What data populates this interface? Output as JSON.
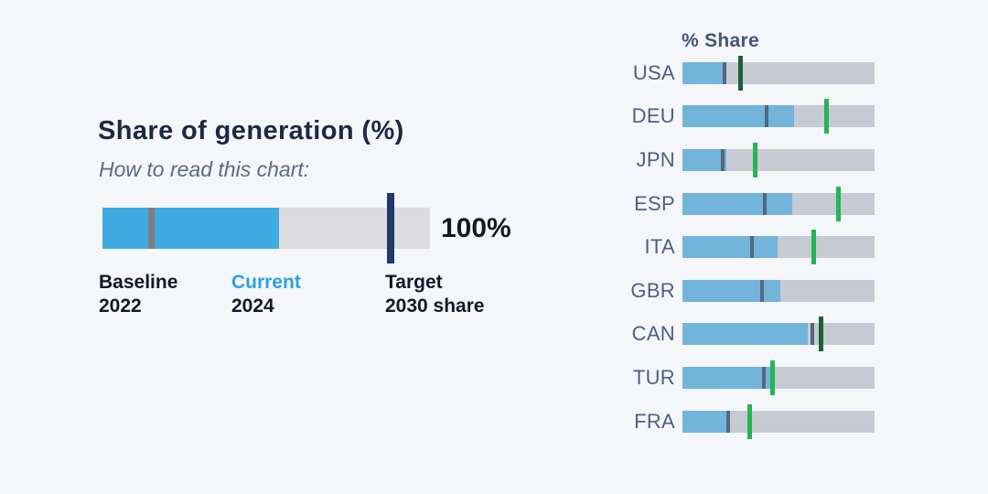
{
  "legend_panel": {
    "title": "Share of generation (%)",
    "subtitle": "How to read this chart:",
    "full_label": "100%",
    "items": [
      {
        "label": "Baseline",
        "sub": "2022"
      },
      {
        "label": "Current",
        "sub": "2024"
      },
      {
        "label": "Target",
        "sub": "2030 share"
      }
    ],
    "demo": {
      "baseline_pct": 15,
      "current_pct": 54,
      "target_pct": 88
    }
  },
  "chart_data": {
    "type": "bar",
    "title": "Share of generation (%)",
    "axis_header": "% Share",
    "orientation": "horizontal",
    "xlim": [
      0,
      100
    ],
    "categories": [
      "USA",
      "DEU",
      "JPN",
      "ESP",
      "ITA",
      "GBR",
      "CAN",
      "TUR",
      "FRA"
    ],
    "series": [
      {
        "name": "Baseline 2022",
        "values": [
          22,
          44,
          21,
          43,
          36,
          41.5,
          67.5,
          42.5,
          24
        ]
      },
      {
        "name": "Current 2024",
        "values": [
          22.5,
          58,
          23,
          57,
          49.5,
          51,
          65,
          46,
          24.5
        ]
      },
      {
        "name": "Target 2030 share",
        "values": [
          30,
          75,
          38,
          81,
          68.5,
          null,
          72,
          47,
          35
        ]
      }
    ],
    "target_tick_shade": [
      "dark",
      "bright",
      "bright",
      "bright",
      "bright",
      null,
      "dark",
      "bright",
      "bright"
    ]
  },
  "colors": {
    "background": "#f5f6fa",
    "demo_current": "#3fabe1",
    "demo_track": "#dcdcde",
    "demo_baseline_marker": "#7f7f82",
    "demo_target_navy": "#20396b",
    "row_current": "#72b4da",
    "row_track": "#c6cad3",
    "row_baseline_marker": "#55677e",
    "target_bright_green": "#25b553",
    "target_dark_green": "#1e6134",
    "accent_blue_text": "#2aa2e2"
  }
}
